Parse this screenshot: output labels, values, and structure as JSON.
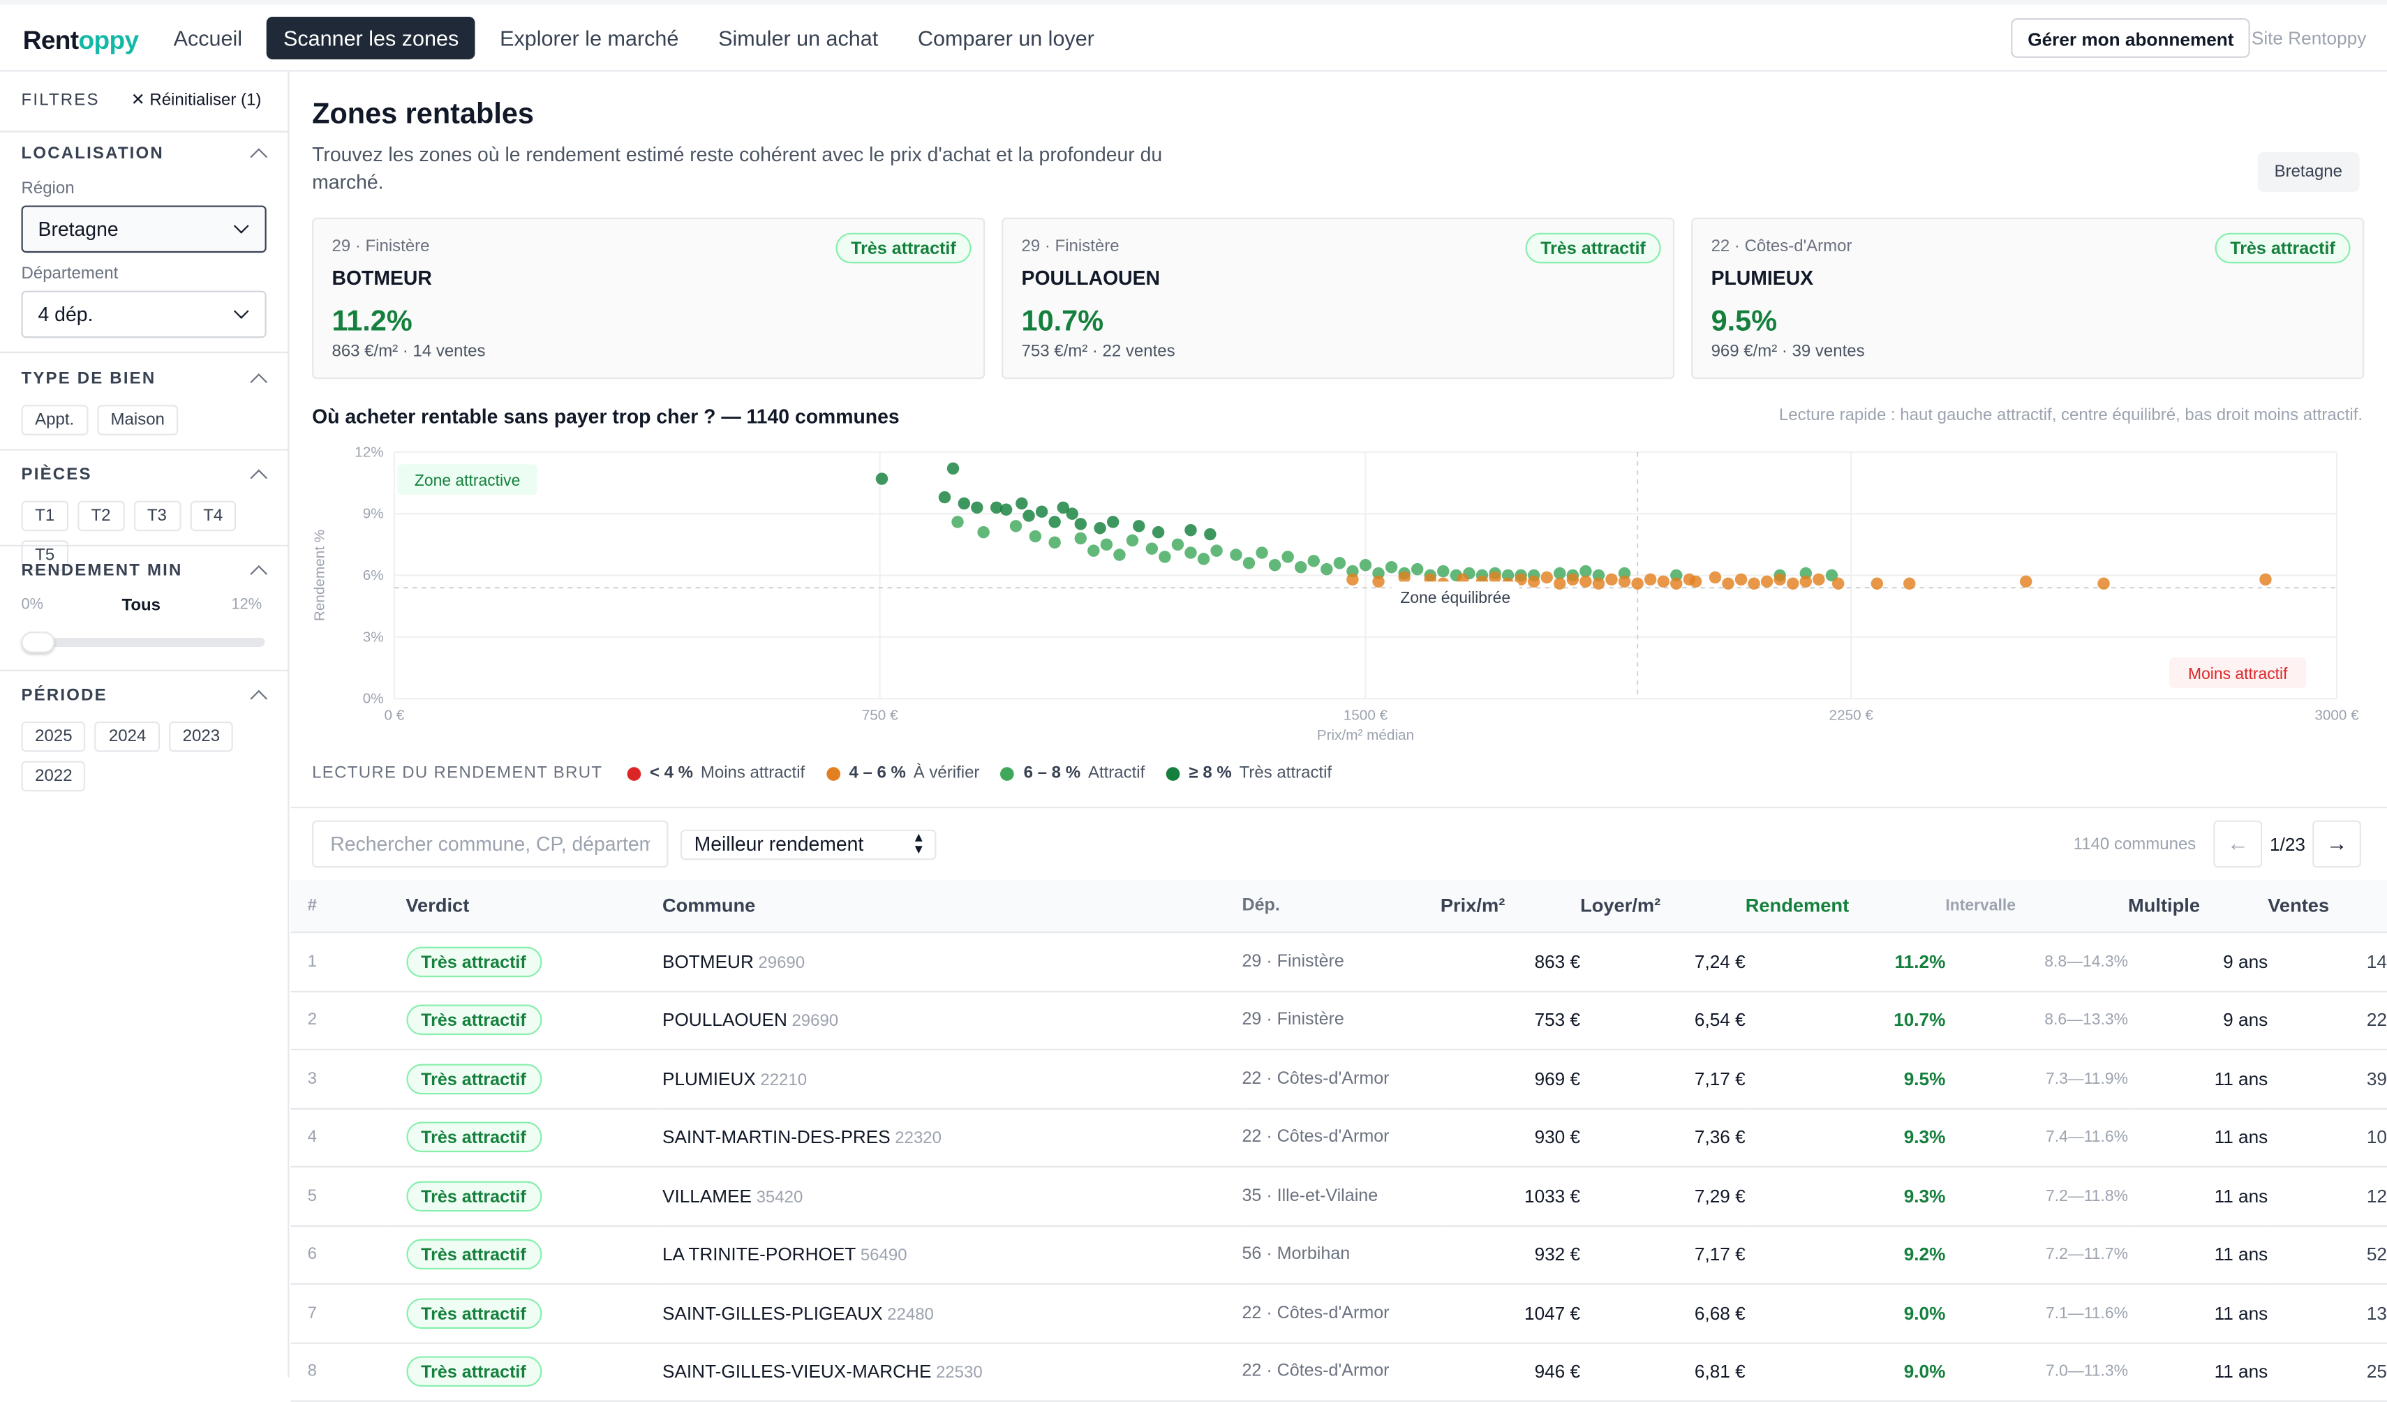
{
  "topbar": {
    "logo_main": "Rent",
    "logo_accent": "oppy",
    "nav": [
      "Accueil",
      "Scanner les zones",
      "Explorer le marché",
      "Simuler un achat",
      "Comparer un loyer"
    ],
    "active_nav": "Scanner les zones",
    "subscription_button": "Gérer mon abonnement",
    "site_link": "Site Rentoppy"
  },
  "sidebar": {
    "title": "FILTRES",
    "reset": "Réinitialiser (1)",
    "localisation": {
      "title": "LOCALISATION",
      "region_label": "Région",
      "region_value": "Bretagne",
      "departement_label": "Département",
      "departement_value": "4 dép."
    },
    "type_bien": {
      "title": "TYPE DE BIEN",
      "options": [
        "Appt.",
        "Maison"
      ]
    },
    "pieces": {
      "title": "PIÈCES",
      "options": [
        "T1",
        "T2",
        "T3",
        "T4",
        "T5"
      ]
    },
    "rendement_min": {
      "title": "RENDEMENT MIN",
      "min_label": "0%",
      "value_label": "Tous",
      "max_label": "12%",
      "value": 0
    },
    "periode": {
      "title": "PÉRIODE",
      "options": [
        "2025",
        "2024",
        "2023",
        "2022"
      ]
    }
  },
  "main": {
    "title": "Zones rentables",
    "subtitle": "Trouvez les zones où le rendement estimé reste cohérent avec le prix d'achat et la profondeur du marché.",
    "region_tag": "Bretagne",
    "cards": [
      {
        "dep": "29 · Finistère",
        "name": "BOTMEUR",
        "pct": "11.2%",
        "meta": "863 €/m² · 14 ventes",
        "badge": "Très attractif"
      },
      {
        "dep": "29 · Finistère",
        "name": "POULLAOUEN",
        "pct": "10.7%",
        "meta": "753 €/m² · 22 ventes",
        "badge": "Très attractif"
      },
      {
        "dep": "22 · Côtes-d'Armor",
        "name": "PLUMIEUX",
        "pct": "9.5%",
        "meta": "969 €/m² · 39 ventes",
        "badge": "Très attractif"
      }
    ],
    "chart_title": "Où acheter rentable sans payer trop cher ? — 1140 communes",
    "chart_hint": "Lecture rapide : haut gauche attractif, centre équilibré, bas droit moins attractif.",
    "legend": {
      "title": "LECTURE DU RENDEMENT BRUT",
      "items": [
        {
          "range": "< 4 %",
          "label": "Moins attractif",
          "color": "#dc2626"
        },
        {
          "range": "4 – 6 %",
          "label": "À vérifier",
          "color": "#e2801f"
        },
        {
          "range": "6 – 8 %",
          "label": "Attractif",
          "color": "#3fa85b"
        },
        {
          "range": "≥ 8 %",
          "label": "Très attractif",
          "color": "#15803d"
        }
      ]
    },
    "search_placeholder": "Rechercher commune, CP, département",
    "sort_value": "Meilleur rendement",
    "count": "1140 communes",
    "page": "1/23",
    "prev_icon": "←",
    "next_icon": "→",
    "table": {
      "headers": [
        "#",
        "Verdict",
        "Commune",
        "Dép.",
        "Prix/m²",
        "Loyer/m²",
        "Rendement",
        "Intervalle",
        "Multiple",
        "Ventes"
      ],
      "rows": [
        {
          "rank": "1",
          "verdict": "Très attractif",
          "commune": "BOTMEUR",
          "cp": "29690",
          "dep": "29 · Finistère",
          "prix": "863 €",
          "loyer": "7,24 €",
          "rend": "11.2%",
          "int": "8.8—14.3%",
          "mult": "9 ans",
          "ventes": "14"
        },
        {
          "rank": "2",
          "verdict": "Très attractif",
          "commune": "POULLAOUEN",
          "cp": "29690",
          "dep": "29 · Finistère",
          "prix": "753 €",
          "loyer": "6,54 €",
          "rend": "10.7%",
          "int": "8.6—13.3%",
          "mult": "9 ans",
          "ventes": "22"
        },
        {
          "rank": "3",
          "verdict": "Très attractif",
          "commune": "PLUMIEUX",
          "cp": "22210",
          "dep": "22 · Côtes-d'Armor",
          "prix": "969 €",
          "loyer": "7,17 €",
          "rend": "9.5%",
          "int": "7.3—11.9%",
          "mult": "11 ans",
          "ventes": "39"
        },
        {
          "rank": "4",
          "verdict": "Très attractif",
          "commune": "SAINT-MARTIN-DES-PRES",
          "cp": "22320",
          "dep": "22 · Côtes-d'Armor",
          "prix": "930 €",
          "loyer": "7,36 €",
          "rend": "9.3%",
          "int": "7.4—11.6%",
          "mult": "11 ans",
          "ventes": "10"
        },
        {
          "rank": "5",
          "verdict": "Très attractif",
          "commune": "VILLAMEE",
          "cp": "35420",
          "dep": "35 · Ille-et-Vilaine",
          "prix": "1033 €",
          "loyer": "7,29 €",
          "rend": "9.3%",
          "int": "7.2—11.8%",
          "mult": "11 ans",
          "ventes": "12"
        },
        {
          "rank": "6",
          "verdict": "Très attractif",
          "commune": "LA TRINITE-PORHOET",
          "cp": "56490",
          "dep": "56 · Morbihan",
          "prix": "932 €",
          "loyer": "7,17 €",
          "rend": "9.2%",
          "int": "7.2—11.7%",
          "mult": "11 ans",
          "ventes": "52"
        },
        {
          "rank": "7",
          "verdict": "Très attractif",
          "commune": "SAINT-GILLES-PLIGEAUX",
          "cp": "22480",
          "dep": "22 · Côtes-d'Armor",
          "prix": "1047 €",
          "loyer": "6,68 €",
          "rend": "9.0%",
          "int": "7.1—11.6%",
          "mult": "11 ans",
          "ventes": "13"
        },
        {
          "rank": "8",
          "verdict": "Très attractif",
          "commune": "SAINT-GILLES-VIEUX-MARCHE",
          "cp": "22530",
          "dep": "22 · Côtes-d'Armor",
          "prix": "946 €",
          "loyer": "6,81 €",
          "rend": "9.0%",
          "int": "7.0—11.3%",
          "mult": "11 ans",
          "ventes": "25"
        }
      ]
    }
  },
  "chart_data": {
    "type": "scatter",
    "title": "Où acheter rentable sans payer trop cher ? — 1140 communes",
    "xlabel": "Prix/m² médian",
    "ylabel": "Rendement %",
    "xlim": [
      0,
      3000
    ],
    "ylim": [
      0,
      12
    ],
    "x_ticks": [
      "0 €",
      "750 €",
      "1500 €",
      "2250 €",
      "3000 €"
    ],
    "y_ticks": [
      "0%",
      "3%",
      "6%",
      "9%",
      "12%"
    ],
    "reference_lines": {
      "x_median": 1920,
      "y_median": 5.4
    },
    "annotations": [
      "Zone attractive",
      "Zone équilibrée",
      "Moins attractif"
    ],
    "series": [
      {
        "name": "≥ 8 %",
        "color": "#15803d",
        "points": [
          [
            753,
            10.7
          ],
          [
            863,
            11.2
          ],
          [
            850,
            9.8
          ],
          [
            880,
            9.5
          ],
          [
            900,
            9.3
          ],
          [
            930,
            9.3
          ],
          [
            945,
            9.2
          ],
          [
            969,
            9.5
          ],
          [
            980,
            8.9
          ],
          [
            1000,
            9.1
          ],
          [
            1033,
            9.3
          ],
          [
            1047,
            9.0
          ],
          [
            1020,
            8.6
          ],
          [
            1060,
            8.5
          ],
          [
            1090,
            8.3
          ],
          [
            1110,
            8.6
          ],
          [
            1150,
            8.4
          ],
          [
            1180,
            8.1
          ],
          [
            1230,
            8.2
          ],
          [
            1260,
            8.0
          ]
        ]
      },
      {
        "name": "6 – 8 %",
        "color": "#3fa85b",
        "points": [
          [
            870,
            8.6
          ],
          [
            910,
            8.1
          ],
          [
            960,
            8.4
          ],
          [
            990,
            7.9
          ],
          [
            1020,
            7.6
          ],
          [
            1060,
            7.8
          ],
          [
            1080,
            7.2
          ],
          [
            1100,
            7.5
          ],
          [
            1120,
            7.0
          ],
          [
            1140,
            7.7
          ],
          [
            1170,
            7.3
          ],
          [
            1190,
            6.9
          ],
          [
            1210,
            7.5
          ],
          [
            1230,
            7.1
          ],
          [
            1250,
            6.8
          ],
          [
            1270,
            7.2
          ],
          [
            1300,
            7.0
          ],
          [
            1320,
            6.6
          ],
          [
            1340,
            7.1
          ],
          [
            1360,
            6.5
          ],
          [
            1380,
            6.9
          ],
          [
            1400,
            6.4
          ],
          [
            1420,
            6.7
          ],
          [
            1440,
            6.3
          ],
          [
            1460,
            6.6
          ],
          [
            1480,
            6.2
          ],
          [
            1500,
            6.5
          ],
          [
            1520,
            6.1
          ],
          [
            1540,
            6.4
          ],
          [
            1560,
            6.1
          ],
          [
            1580,
            6.3
          ],
          [
            1600,
            6.0
          ],
          [
            1620,
            6.2
          ],
          [
            1640,
            6.0
          ],
          [
            1660,
            6.1
          ],
          [
            1680,
            6.0
          ],
          [
            1700,
            6.1
          ],
          [
            1720,
            6.0
          ],
          [
            1740,
            6.0
          ],
          [
            1760,
            6.0
          ],
          [
            1800,
            6.1
          ],
          [
            1820,
            6.0
          ],
          [
            1840,
            6.2
          ],
          [
            1860,
            6.0
          ],
          [
            1900,
            6.1
          ],
          [
            1980,
            6.0
          ],
          [
            2140,
            6.0
          ],
          [
            2180,
            6.1
          ],
          [
            2220,
            6.0
          ]
        ]
      },
      {
        "name": "4 – 6 %",
        "color": "#e2801f",
        "points": [
          [
            1480,
            5.8
          ],
          [
            1520,
            5.7
          ],
          [
            1560,
            5.9
          ],
          [
            1600,
            5.8
          ],
          [
            1620,
            5.6
          ],
          [
            1650,
            5.8
          ],
          [
            1680,
            5.7
          ],
          [
            1700,
            5.9
          ],
          [
            1720,
            5.6
          ],
          [
            1740,
            5.8
          ],
          [
            1760,
            5.7
          ],
          [
            1780,
            5.9
          ],
          [
            1800,
            5.6
          ],
          [
            1820,
            5.8
          ],
          [
            1840,
            5.7
          ],
          [
            1860,
            5.6
          ],
          [
            1880,
            5.8
          ],
          [
            1900,
            5.7
          ],
          [
            1920,
            5.6
          ],
          [
            1940,
            5.8
          ],
          [
            1960,
            5.7
          ],
          [
            1980,
            5.6
          ],
          [
            2000,
            5.8
          ],
          [
            2010,
            5.7
          ],
          [
            2040,
            5.9
          ],
          [
            2060,
            5.6
          ],
          [
            2080,
            5.8
          ],
          [
            2100,
            5.6
          ],
          [
            2120,
            5.7
          ],
          [
            2140,
            5.8
          ],
          [
            2160,
            5.6
          ],
          [
            2180,
            5.7
          ],
          [
            2200,
            5.8
          ],
          [
            2230,
            5.6
          ],
          [
            2290,
            5.6
          ],
          [
            2340,
            5.6
          ],
          [
            2520,
            5.7
          ],
          [
            2640,
            5.6
          ],
          [
            2890,
            5.8
          ]
        ]
      }
    ]
  }
}
